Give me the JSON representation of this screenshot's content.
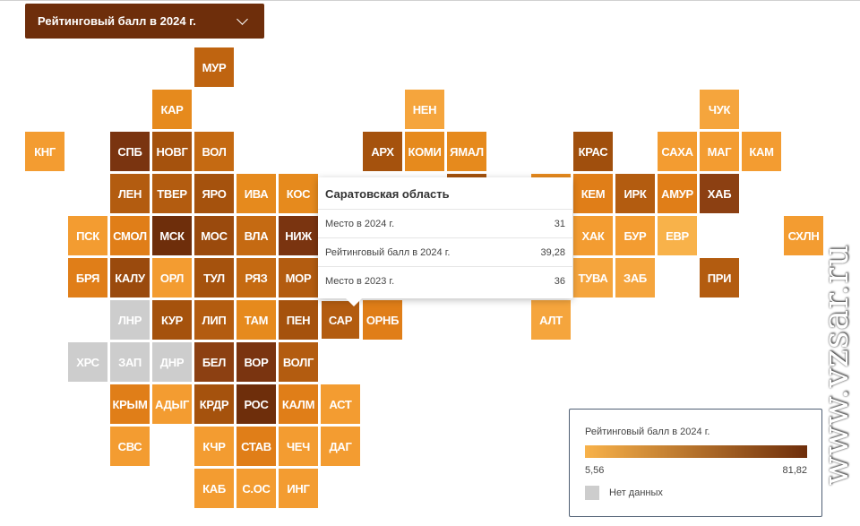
{
  "dropdown": {
    "label": "Рейтинговый балл в 2024 г."
  },
  "tooltip": {
    "title": "Саратовская область",
    "rows": [
      {
        "label": "Место в 2024 г.",
        "value": "31"
      },
      {
        "label": "Рейтинговый балл в 2024 г.",
        "value": "39,28"
      },
      {
        "label": "Место в 2023 г.",
        "value": "36"
      }
    ]
  },
  "legend": {
    "title": "Рейтинговый балл в 2024 г.",
    "min_label": "5,56",
    "max_label": "81,82",
    "no_data_label": "Нет данных",
    "gradient_start": "#f8b24a",
    "gradient_end": "#6e2e0b",
    "no_data_color": "#cdcdcd"
  },
  "watermark": "www.vzsar.ru",
  "regions": [
    {
      "code": "МУР",
      "color": "#bf6410"
    },
    {
      "code": "КАР",
      "color": "#e68a1d"
    },
    {
      "code": "НЕН",
      "color": "#f5a53d"
    },
    {
      "code": "ЧУК",
      "color": "#f5a53d"
    },
    {
      "code": "КНГ",
      "color": "#f39c31"
    },
    {
      "code": "СПБ",
      "color": "#7a3410"
    },
    {
      "code": "НОВГ",
      "color": "#a5520d"
    },
    {
      "code": "ВОЛ",
      "color": "#c56a12"
    },
    {
      "code": "АРХ",
      "color": "#a5520d"
    },
    {
      "code": "КОМИ",
      "color": "#e68a1d"
    },
    {
      "code": "ЯМАЛ",
      "color": "#e68a1d"
    },
    {
      "code": "КРАС",
      "color": "#a04f0d"
    },
    {
      "code": "САХА",
      "color": "#f39c31"
    },
    {
      "code": "МАГ",
      "color": "#f39c31"
    },
    {
      "code": "КАМ",
      "color": "#f39c31"
    },
    {
      "code": "ЛЕН",
      "color": "#b35c10"
    },
    {
      "code": "ТВЕР",
      "color": "#b35c10"
    },
    {
      "code": "ЯРО",
      "color": "#a5520d"
    },
    {
      "code": "ИВА",
      "color": "#e68a1d"
    },
    {
      "code": "КОС",
      "color": "#e68a1d"
    },
    {
      "code": "КЕМ",
      "color": "#e07e18"
    },
    {
      "code": "ИРК",
      "color": "#b35c10"
    },
    {
      "code": "АМУР",
      "color": "#e07e18"
    },
    {
      "code": "ХАБ",
      "color": "#8c4012"
    },
    {
      "code": "ПСК",
      "color": "#f39c31"
    },
    {
      "code": "СМОЛ",
      "color": "#e07e18"
    },
    {
      "code": "МСК",
      "color": "#6e2e0b"
    },
    {
      "code": "МОС",
      "color": "#9a4a0d"
    },
    {
      "code": "ВЛА",
      "color": "#c56a12"
    },
    {
      "code": "НИЖ",
      "color": "#7a3410"
    },
    {
      "code": "ХАК",
      "color": "#f39c31"
    },
    {
      "code": "БУР",
      "color": "#f39c31"
    },
    {
      "code": "ЕВР",
      "color": "#f8b24a"
    },
    {
      "code": "СХЛН",
      "color": "#f39c31"
    },
    {
      "code": "БРЯ",
      "color": "#e07e18"
    },
    {
      "code": "КАЛУ",
      "color": "#9a4a0d"
    },
    {
      "code": "ОРЛ",
      "color": "#f39c31"
    },
    {
      "code": "ТУЛ",
      "color": "#a5520d"
    },
    {
      "code": "РЯЗ",
      "color": "#c56a12"
    },
    {
      "code": "МОР",
      "color": "#b35c10"
    },
    {
      "code": "ТУВА",
      "color": "#f5a53d"
    },
    {
      "code": "ЗАБ",
      "color": "#f5a53d"
    },
    {
      "code": "ПРИ",
      "color": "#b35c10"
    },
    {
      "code": "ЛНР",
      "color": "#cdcdcd"
    },
    {
      "code": "КУР",
      "color": "#a5520d"
    },
    {
      "code": "ЛИП",
      "color": "#b35c10"
    },
    {
      "code": "ТАМ",
      "color": "#e68a1d"
    },
    {
      "code": "ПЕН",
      "color": "#a5520d"
    },
    {
      "code": "САР",
      "color": "#b35c10"
    },
    {
      "code": "ОРНБ",
      "color": "#e07e18"
    },
    {
      "code": "АЛТ",
      "color": "#f5a53d"
    },
    {
      "code": "ХРС",
      "color": "#cdcdcd"
    },
    {
      "code": "ЗАП",
      "color": "#cdcdcd"
    },
    {
      "code": "ДНР",
      "color": "#cdcdcd"
    },
    {
      "code": "БЕЛ",
      "color": "#8c4012"
    },
    {
      "code": "ВОР",
      "color": "#7a3410"
    },
    {
      "code": "ВОЛГ",
      "color": "#b35c10"
    },
    {
      "code": "КРЫМ",
      "color": "#e07e18"
    },
    {
      "code": "АДЫГ",
      "color": "#f39c31"
    },
    {
      "code": "КРДР",
      "color": "#a5520d"
    },
    {
      "code": "РОС",
      "color": "#6e2e0b"
    },
    {
      "code": "КАЛМ",
      "color": "#e07e18"
    },
    {
      "code": "АСТ",
      "color": "#f39c31"
    },
    {
      "code": "СВС",
      "color": "#f39c31"
    },
    {
      "code": "КЧР",
      "color": "#f39c31"
    },
    {
      "code": "СТАВ",
      "color": "#e07e18"
    },
    {
      "code": "ЧЕЧ",
      "color": "#f39c31"
    },
    {
      "code": "ДАГ",
      "color": "#f39c31"
    },
    {
      "code": "КАБ",
      "color": "#f39c31"
    },
    {
      "code": "С.ОС",
      "color": "#f39c31"
    },
    {
      "code": "ИНГ",
      "color": "#f39c31"
    }
  ]
}
